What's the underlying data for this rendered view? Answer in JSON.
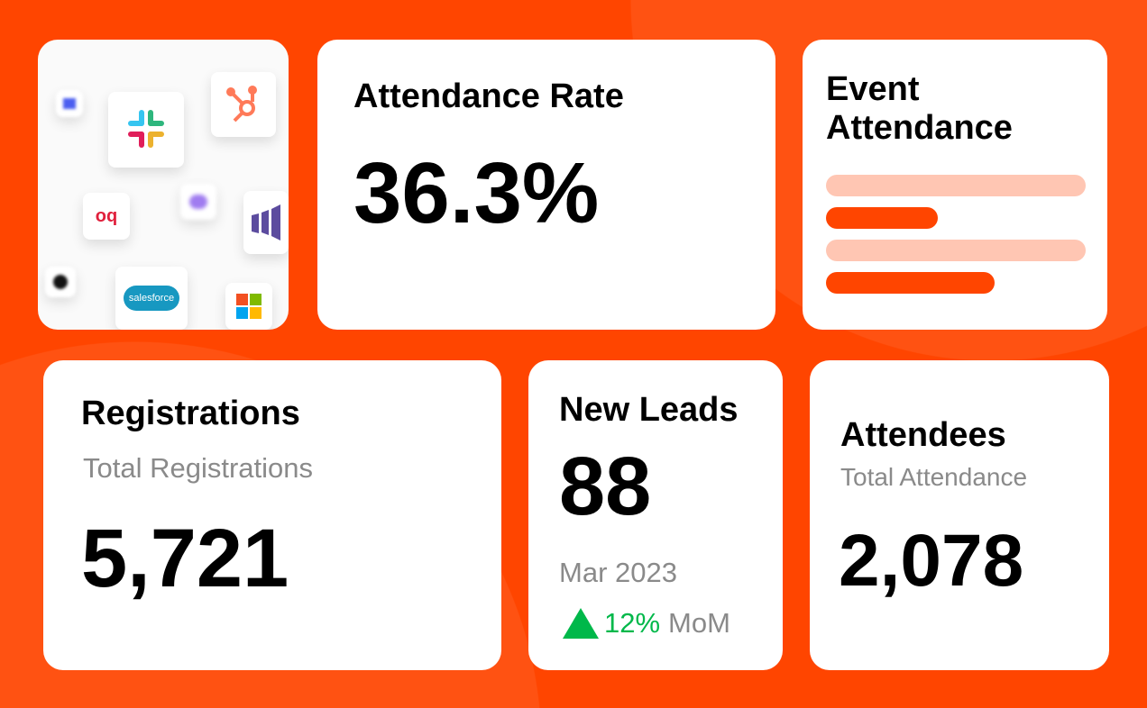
{
  "colors": {
    "accent": "#ff4500",
    "bar_light": "#ffc6b3",
    "up": "#00b84a"
  },
  "integrations": {
    "logos": [
      "slack-icon",
      "hubspot-icon",
      "salesforce-icon",
      "microsoft-icon",
      "marketo-icon",
      "oq-icon"
    ],
    "salesforce_text": "salesforce"
  },
  "attendance_rate": {
    "title": "Attendance Rate",
    "value": "36.3%"
  },
  "event_attendance": {
    "title_line1": "Event",
    "title_line2": "Attendance",
    "bars": [
      {
        "fraction": 1.0,
        "type": "light"
      },
      {
        "fraction": 0.43,
        "type": "dark"
      },
      {
        "fraction": 1.0,
        "type": "light"
      },
      {
        "fraction": 0.65,
        "type": "dark"
      }
    ]
  },
  "registrations": {
    "title": "Registrations",
    "subtitle": "Total Registrations",
    "value": "5,721"
  },
  "new_leads": {
    "title": "New Leads",
    "value": "88",
    "period": "Mar 2023",
    "change": "12%",
    "change_label": "MoM"
  },
  "attendees": {
    "title": "Attendees",
    "subtitle": "Total Attendance",
    "value": "2,078"
  }
}
